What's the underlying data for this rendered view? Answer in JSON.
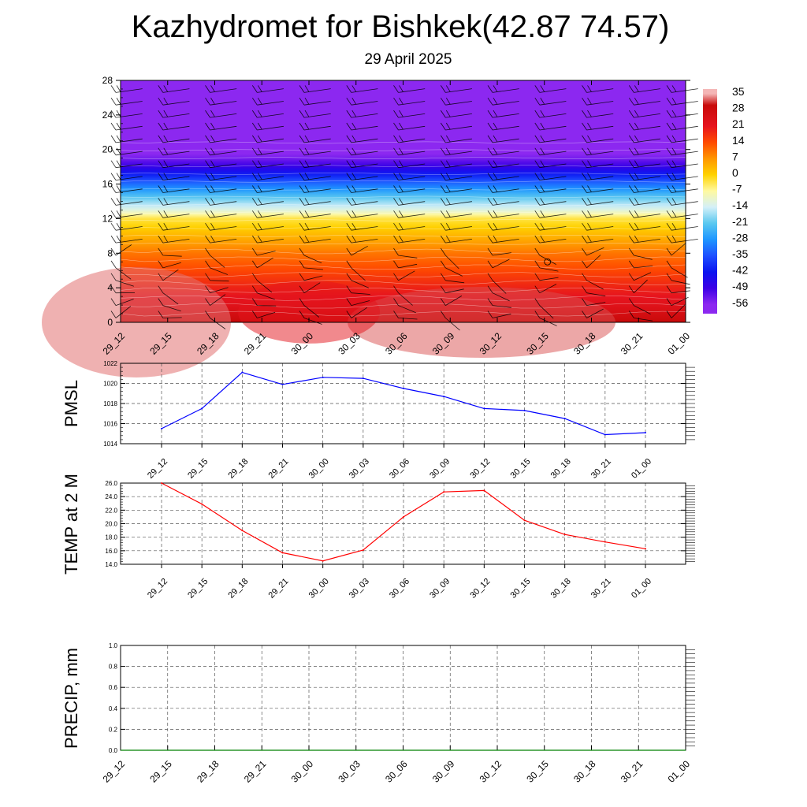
{
  "title": "Kazhydromet for Bishkek(42.87 74.57)",
  "subtitle": "29 April 2025",
  "time_labels": [
    "29_12",
    "29_15",
    "29_18",
    "29_21",
    "30_00",
    "30_03",
    "30_06",
    "30_09",
    "30_12",
    "30_15",
    "30_18",
    "30_21",
    "01_00"
  ],
  "colors": {
    "pmsl_line": "#0000ff",
    "temp_line": "#ff0000",
    "precip_line": "#008000",
    "grid": "#555555"
  },
  "chart_data": [
    {
      "id": "upper-air",
      "type": "heatmap",
      "description_of_fields": "filled temperature contours with wind barbs",
      "ylim": [
        0,
        28
      ],
      "yticks": [
        0,
        4,
        8,
        12,
        16,
        20,
        24,
        28
      ],
      "x": [
        "29_12",
        "29_15",
        "29_18",
        "29_21",
        "30_00",
        "30_03",
        "30_06",
        "30_09",
        "30_12",
        "30_15",
        "30_18",
        "30_21",
        "01_00"
      ],
      "colorbar": {
        "labels": [
          "35",
          "28",
          "21",
          "14",
          "7",
          "0",
          "-7",
          "-14",
          "-21",
          "-28",
          "-35",
          "-42",
          "-49",
          "-56"
        ],
        "stops": [
          {
            "value": 35,
            "color": "#f4b6b6"
          },
          {
            "value": 30,
            "color": "#c80a0a"
          },
          {
            "value": 21,
            "color": "#e6141e"
          },
          {
            "value": 14,
            "color": "#ff4a00"
          },
          {
            "value": 7,
            "color": "#ff9600"
          },
          {
            "value": 0,
            "color": "#ffd200"
          },
          {
            "value": -7,
            "color": "#fff9a0"
          },
          {
            "value": -14,
            "color": "#d4f0f8"
          },
          {
            "value": -21,
            "color": "#5ac8f0"
          },
          {
            "value": -28,
            "color": "#1e96ff"
          },
          {
            "value": -35,
            "color": "#1e50ff"
          },
          {
            "value": -42,
            "color": "#0a14f0"
          },
          {
            "value": -49,
            "color": "#3c00e6"
          },
          {
            "value": -56,
            "color": "#8c28f0"
          }
        ]
      },
      "temperature_profile": [
        {
          "level": 0,
          "value": 30
        },
        {
          "level": 2,
          "value": 23
        },
        {
          "level": 4,
          "value": 19
        },
        {
          "level": 8,
          "value": 10
        },
        {
          "level": 12,
          "value": -3
        },
        {
          "level": 13,
          "value": -12
        },
        {
          "level": 14,
          "value": -18
        },
        {
          "level": 16,
          "value": -32
        },
        {
          "level": 18,
          "value": -48
        },
        {
          "level": 19,
          "value": -54
        },
        {
          "level": 20,
          "value": -58
        },
        {
          "level": 28,
          "value": -60
        }
      ]
    },
    {
      "id": "pmsl",
      "type": "line",
      "ylabel": "PMSL",
      "ylim": [
        1014,
        1022
      ],
      "yticks": [
        "1014",
        "1016",
        "1018",
        "1020",
        "1022"
      ],
      "x": [
        "29_12",
        "29_15",
        "29_18",
        "29_21",
        "30_00",
        "30_03",
        "30_06",
        "30_09",
        "30_12",
        "30_15",
        "30_18",
        "30_21",
        "01_00"
      ],
      "series": [
        {
          "values": [
            1015.5,
            1017.5,
            1021.1,
            1019.9,
            1020.6,
            1020.5,
            1019.5,
            1018.7,
            1017.5,
            1017.3,
            1016.5,
            1014.9,
            1015.1
          ]
        }
      ]
    },
    {
      "id": "temp2m",
      "type": "line",
      "ylabel": "TEMP at 2 M",
      "ylim": [
        14,
        26
      ],
      "yticks": [
        "14.0",
        "16.0",
        "18.0",
        "20.0",
        "22.0",
        "24.0",
        "26.0"
      ],
      "x": [
        "29_12",
        "29_15",
        "29_18",
        "29_21",
        "30_00",
        "30_03",
        "30_06",
        "30_09",
        "30_12",
        "30_15",
        "30_18",
        "30_21",
        "01_00"
      ],
      "series": [
        {
          "values": [
            26.0,
            22.9,
            19.0,
            15.7,
            14.5,
            16.1,
            21.0,
            24.7,
            24.9,
            20.5,
            18.4,
            17.3,
            16.3
          ]
        }
      ]
    },
    {
      "id": "precip",
      "type": "line",
      "ylabel": "PRECIP, mm",
      "ylim": [
        0,
        1
      ],
      "yticks": [
        "0.0",
        "0.2",
        "0.4",
        "0.6",
        "0.8",
        "1.0"
      ],
      "x": [
        "29_12",
        "29_15",
        "29_18",
        "29_21",
        "30_00",
        "30_03",
        "30_06",
        "30_09",
        "30_12",
        "30_15",
        "30_18",
        "30_21",
        "01_00"
      ],
      "series": [
        {
          "values": [
            0,
            0,
            0,
            0,
            0,
            0,
            0,
            0,
            0,
            0,
            0,
            0,
            0
          ]
        }
      ]
    }
  ]
}
